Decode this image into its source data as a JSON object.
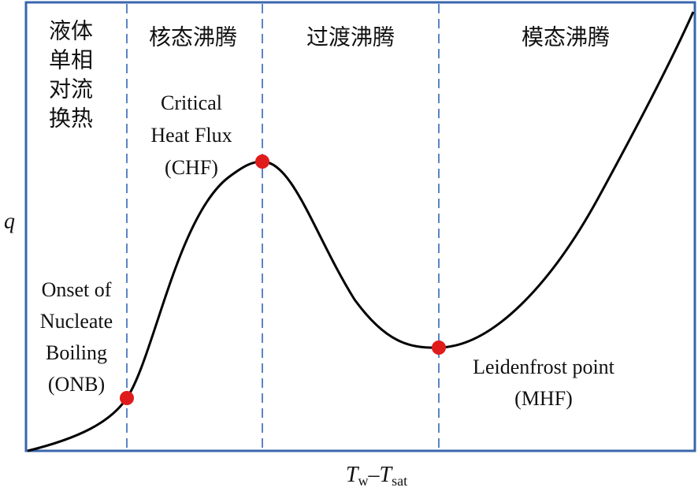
{
  "regions": [
    {
      "label_lines": [
        "液体",
        "单相",
        "对流",
        "换热"
      ]
    },
    {
      "label_lines": [
        "核态沸腾"
      ]
    },
    {
      "label_lines": [
        "过渡沸腾"
      ]
    },
    {
      "label_lines": [
        "模态沸腾"
      ]
    }
  ],
  "points": [
    {
      "label_lines": [
        "Onset of",
        "Nucleate",
        "Boiling",
        "(ONB)"
      ]
    },
    {
      "label_lines": [
        "Critical",
        "Heat Flux",
        "(CHF)"
      ]
    },
    {
      "label_lines": [
        "Leidenfrost point",
        "(MHF)"
      ]
    }
  ],
  "y_axis": {
    "label": "q"
  },
  "x_axis": {
    "label_parts": [
      "T",
      "w",
      "–T",
      "sat"
    ]
  }
}
